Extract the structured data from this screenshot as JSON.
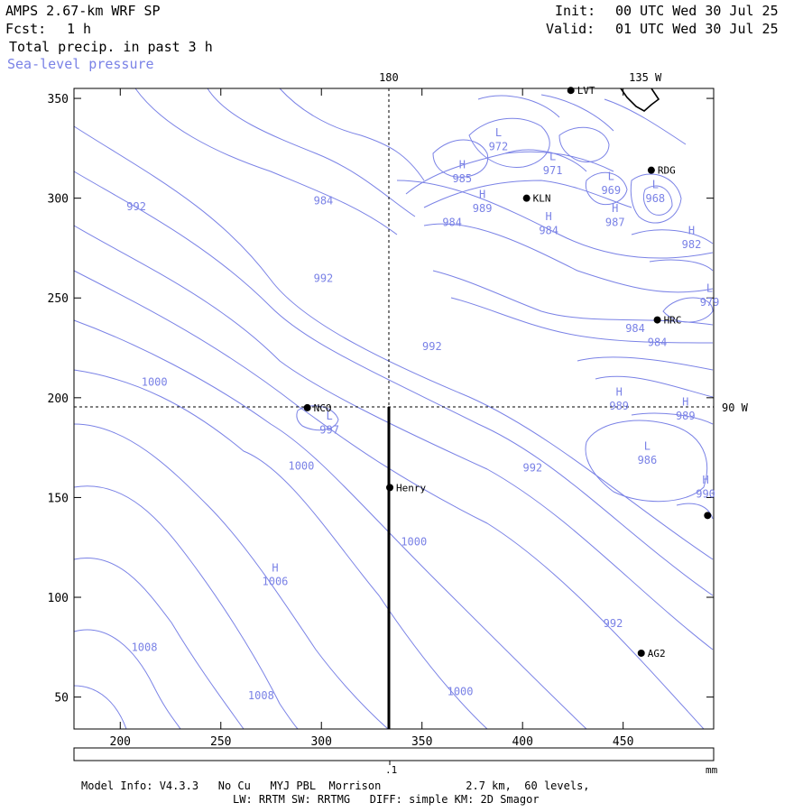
{
  "header": {
    "model_title": "AMPS 2.67-km WRF SP",
    "fcst_label": "Fcst:",
    "fcst_value": "1 h",
    "field_name": "Total precip. in past 3 h",
    "overlay_name": "Sea-level pressure",
    "init_label": "Init:",
    "init_value": "00 UTC Wed 30 Jul 25",
    "valid_label": "Valid:",
    "valid_value": "01 UTC Wed 30 Jul 25"
  },
  "map": {
    "x_axis_ticks": [
      200,
      250,
      300,
      350,
      400,
      450
    ],
    "y_axis_ticks": [
      50,
      100,
      150,
      200,
      250,
      300,
      350
    ],
    "x_range": [
      177,
      495
    ],
    "y_range": [
      34,
      355
    ],
    "meridian_labels": [
      {
        "text": "180",
        "x": 333.5
      },
      {
        "text": "135 W",
        "x": 461
      }
    ],
    "parallel_label": {
      "text": "90 W",
      "y": 195
    },
    "contour_color": "#7a82e6",
    "stations": [
      {
        "name": "LVT",
        "x": 424,
        "y": 354
      },
      {
        "name": "RDG",
        "x": 464,
        "y": 314
      },
      {
        "name": "KLN",
        "x": 402,
        "y": 300
      },
      {
        "name": "HRC",
        "x": 467,
        "y": 239
      },
      {
        "name": "NCO",
        "x": 293,
        "y": 195
      },
      {
        "name": "Henry",
        "x": 334,
        "y": 155
      },
      {
        "name": "AG2",
        "x": 459,
        "y": 72
      },
      {
        "name": "",
        "x": 492,
        "y": 141
      }
    ],
    "pressure_labels": [
      {
        "text": "L",
        "x": 388,
        "y": 331
      },
      {
        "text": "972",
        "x": 388,
        "y": 324
      },
      {
        "text": "L",
        "x": 415,
        "y": 319
      },
      {
        "text": "971",
        "x": 415,
        "y": 312
      },
      {
        "text": "H",
        "x": 370,
        "y": 315
      },
      {
        "text": "985",
        "x": 370,
        "y": 308
      },
      {
        "text": "H",
        "x": 380,
        "y": 300
      },
      {
        "text": "989",
        "x": 380,
        "y": 293
      },
      {
        "text": "L",
        "x": 444,
        "y": 309
      },
      {
        "text": "969",
        "x": 444,
        "y": 302
      },
      {
        "text": "L",
        "x": 466,
        "y": 305
      },
      {
        "text": "968",
        "x": 466,
        "y": 298
      },
      {
        "text": "H",
        "x": 446,
        "y": 293
      },
      {
        "text": "987",
        "x": 446,
        "y": 286
      },
      {
        "text": "H",
        "x": 413,
        "y": 289
      },
      {
        "text": "984",
        "x": 413,
        "y": 282
      },
      {
        "text": "H",
        "x": 484,
        "y": 282
      },
      {
        "text": "982",
        "x": 484,
        "y": 275
      },
      {
        "text": "L",
        "x": 493,
        "y": 253
      },
      {
        "text": "979",
        "x": 493,
        "y": 246
      },
      {
        "text": "992",
        "x": 208,
        "y": 294
      },
      {
        "text": "984",
        "x": 301,
        "y": 297
      },
      {
        "text": "984",
        "x": 365,
        "y": 286
      },
      {
        "text": "992",
        "x": 301,
        "y": 258
      },
      {
        "text": "992",
        "x": 355,
        "y": 224
      },
      {
        "text": "984",
        "x": 456,
        "y": 233
      },
      {
        "text": "984",
        "x": 467,
        "y": 226
      },
      {
        "text": "1000",
        "x": 217,
        "y": 206
      },
      {
        "text": "H",
        "x": 448,
        "y": 201
      },
      {
        "text": "989",
        "x": 448,
        "y": 194
      },
      {
        "text": "H",
        "x": 481,
        "y": 196
      },
      {
        "text": "989",
        "x": 481,
        "y": 189
      },
      {
        "text": "L",
        "x": 304,
        "y": 189
      },
      {
        "text": "997",
        "x": 304,
        "y": 182
      },
      {
        "text": "L",
        "x": 462,
        "y": 174
      },
      {
        "text": "986",
        "x": 462,
        "y": 167
      },
      {
        "text": "1000",
        "x": 290,
        "y": 164
      },
      {
        "text": "992",
        "x": 405,
        "y": 163
      },
      {
        "text": "H",
        "x": 491,
        "y": 157
      },
      {
        "text": "990",
        "x": 491,
        "y": 150
      },
      {
        "text": "1000",
        "x": 346,
        "y": 126
      },
      {
        "text": "H",
        "x": 277,
        "y": 113
      },
      {
        "text": "1006",
        "x": 277,
        "y": 106
      },
      {
        "text": "992",
        "x": 445,
        "y": 85
      },
      {
        "text": "1008",
        "x": 212,
        "y": 73
      },
      {
        "text": "1000",
        "x": 369,
        "y": 51
      },
      {
        "text": "1008",
        "x": 270,
        "y": 49
      }
    ],
    "precip_scale": {
      "tick_label": ".1",
      "unit": "mm"
    }
  },
  "footer": {
    "line1": "Model Info: V4.3.3   No Cu   MYJ PBL  Morrison             2.7 km,  60 levels,",
    "line2": "LW: RRTM SW: RRTMG   DIFF: simple KM: 2D Smagor"
  }
}
